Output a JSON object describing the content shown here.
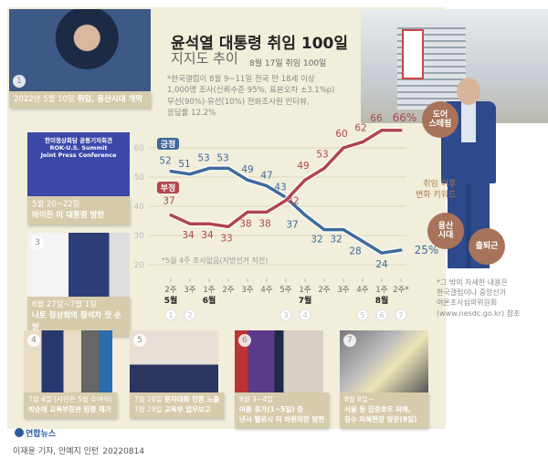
{
  "header": {
    "title": "윤석열 대통령 취임 100일",
    "subtitle": "지지도 추이",
    "date": "8월 17일 취임 100일",
    "note": "*한국갤럽이 8월 9~11일 전국 만 18세 이상\n 1,000명 조사(신뢰수준 95%, 표본오차 ±3.1%p)\n 무선(90%)·유선(10%) 전화조사원 인터뷰,\n 응답률 12.2%"
  },
  "keywords": {
    "label": "취임 이후\n변화 키워드",
    "items": [
      "도어\n스테핑",
      "용산\n시대",
      "출퇴근"
    ]
  },
  "source_note": "*그 밖의 자세한 내용은\n 한국갤럽이나 중앙선거\n 여론조사심의위원회\n (www.nesdc.go.kr) 참조",
  "events": [
    {
      "num": "1",
      "date": "2022년 5월 10일",
      "desc": "취임, 용산시대 개막"
    },
    {
      "num": "2",
      "date": "5월 20~22일",
      "desc": "바이든 미 대통령 방한",
      "photo_text": "한미정상회담 공동기자회견\nROK-U.S. Summit\nJoint Press Conference"
    },
    {
      "num": "3",
      "date": "6월 27일~7월 1일",
      "desc": "나토 정상회의 참석차 첫 순방"
    },
    {
      "num": "4",
      "date": "7월 4일 (사진은 5월 수여식)",
      "desc": "박순애 교육부장관 임명 재가"
    },
    {
      "num": "5",
      "date": "7월 26일",
      "desc": "문자대화 언론 노출",
      "date2": "7월 29일",
      "desc2": "교육부 업무보고"
    },
    {
      "num": "6",
      "date": "8월 3~4일",
      "desc": "여름 휴가(1~5일) 중\n낸시 펠로시 미 하원의장 방한"
    },
    {
      "num": "7",
      "date": "8월 8일~",
      "desc": "서울 등 집중호우 피해,\n침수 피해현장 방문(9일)"
    }
  ],
  "footer": {
    "logo": "연합뉴스",
    "credit": "이재윤 기자, 안예지 인턴",
    "code": "20220814"
  },
  "colors": {
    "positive": "#3f6a9a",
    "negative": "#b0464f",
    "background": "#f1eedb",
    "caption": "#d6ccab"
  },
  "chart_data": {
    "type": "line",
    "title": "지지도 추이",
    "x": [
      "2주",
      "3주",
      "1주",
      "2주",
      "3주",
      "4주",
      "5주",
      "1주",
      "2주",
      "3주",
      "4주",
      "1주",
      "2주*"
    ],
    "months": [
      {
        "label": "5월",
        "index": 0
      },
      {
        "label": "6월",
        "index": 2
      },
      {
        "label": "7월",
        "index": 7
      },
      {
        "label": "8월",
        "index": 11
      }
    ],
    "event_markers": [
      {
        "label": "1",
        "index": 0
      },
      {
        "label": "2",
        "index": 1
      },
      {
        "label": "3",
        "index": 6
      },
      {
        "label": "4",
        "index": 7
      },
      {
        "label": "5",
        "index": 10
      },
      {
        "label": "6",
        "index": 11
      },
      {
        "label": "7",
        "index": 12
      }
    ],
    "series": [
      {
        "name": "긍정",
        "values": [
          52,
          51,
          53,
          53,
          49,
          47,
          43,
          37,
          32,
          32,
          28,
          24,
          25
        ],
        "last_label": "25%"
      },
      {
        "name": "부정",
        "values": [
          37,
          34,
          34,
          33,
          38,
          38,
          42,
          49,
          53,
          60,
          62,
          66,
          66
        ],
        "last_label": "66%"
      }
    ],
    "yticks": [
      60,
      50,
      40,
      30,
      20
    ],
    "ylim": [
      20,
      66
    ],
    "annotation": "*5월 4주 조사없음(지방선거 직전)",
    "grid": true,
    "legend": "left"
  }
}
